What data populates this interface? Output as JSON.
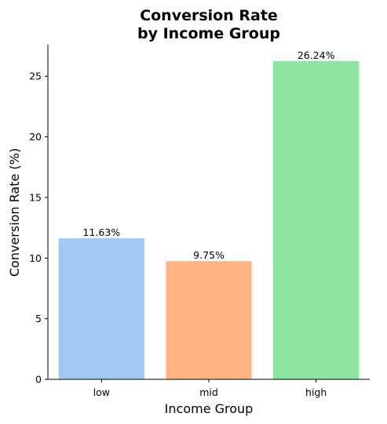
{
  "chart_data": {
    "type": "bar",
    "title": [
      "Conversion Rate",
      "by Income Group"
    ],
    "xlabel": "Income Group",
    "ylabel": "Conversion Rate (%)",
    "categories": [
      "low",
      "mid",
      "high"
    ],
    "values": [
      11.63,
      9.75,
      26.24
    ],
    "value_labels": [
      "11.63%",
      "9.75%",
      "26.24%"
    ],
    "colors": [
      "#a1c9f4",
      "#ffb482",
      "#8de5a1"
    ],
    "ylim": [
      0,
      27.6
    ],
    "yticks": [
      0,
      5,
      10,
      15,
      20,
      25
    ],
    "grid": false,
    "legend": "none"
  }
}
